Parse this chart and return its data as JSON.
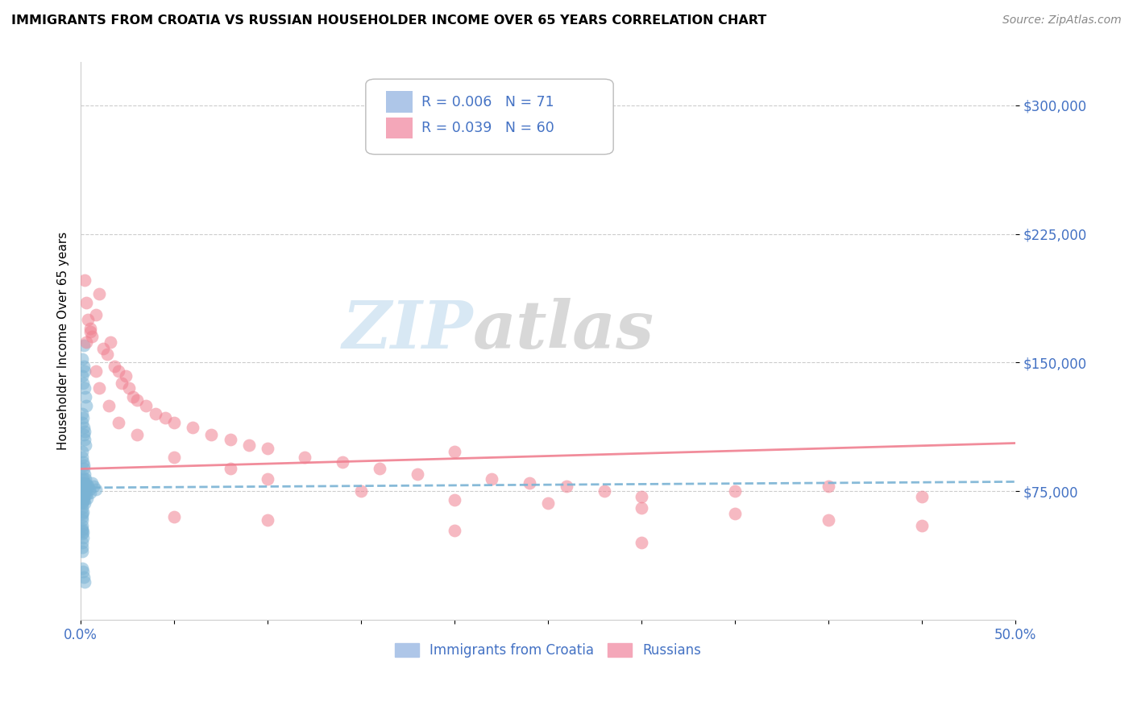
{
  "title": "IMMIGRANTS FROM CROATIA VS RUSSIAN HOUSEHOLDER INCOME OVER 65 YEARS CORRELATION CHART",
  "source": "Source: ZipAtlas.com",
  "ylabel": "Householder Income Over 65 years",
  "xlim": [
    0.0,
    0.5
  ],
  "ylim": [
    0,
    325000
  ],
  "yticks": [
    75000,
    150000,
    225000,
    300000
  ],
  "ytick_labels": [
    "$75,000",
    "$150,000",
    "$225,000",
    "$300,000"
  ],
  "xticks": [
    0.0,
    0.05,
    0.1,
    0.15,
    0.2,
    0.25,
    0.3,
    0.35,
    0.4,
    0.45,
    0.5
  ],
  "xtick_labels": [
    "0.0%",
    "",
    "",
    "",
    "",
    "",
    "",
    "",
    "",
    "",
    "50.0%"
  ],
  "R_croatia": "0.006",
  "N_croatia": "71",
  "R_russian": "0.039",
  "N_russian": "60",
  "croatia_color": "#7ab3d4",
  "russian_color": "#f08090",
  "croatia_legend_color": "#aec6e8",
  "russian_legend_color": "#f4a7b9",
  "croatia_x": [
    0.0008,
    0.001,
    0.0012,
    0.0015,
    0.0018,
    0.002,
    0.0022,
    0.0025,
    0.0028,
    0.0008,
    0.001,
    0.0012,
    0.0015,
    0.0018,
    0.002,
    0.0022,
    0.0025,
    0.0008,
    0.001,
    0.0012,
    0.0015,
    0.0018,
    0.002,
    0.0008,
    0.001,
    0.0012,
    0.0015,
    0.0018,
    0.002,
    0.0008,
    0.001,
    0.0012,
    0.0015,
    0.0018,
    0.0008,
    0.001,
    0.0012,
    0.002,
    0.0025,
    0.003,
    0.0035,
    0.0008,
    0.0008,
    0.001,
    0.001,
    0.0012,
    0.0008,
    0.0008,
    0.001,
    0.001,
    0.0012,
    0.0012,
    0.0008,
    0.0008,
    0.001,
    0.0015,
    0.0018,
    0.0022,
    0.0025,
    0.003,
    0.0035,
    0.004,
    0.0045,
    0.005,
    0.006,
    0.007,
    0.008,
    0.001,
    0.0012,
    0.0015,
    0.002
  ],
  "croatia_y": [
    142000,
    152000,
    138000,
    148000,
    160000,
    135000,
    145000,
    130000,
    125000,
    115000,
    120000,
    118000,
    112000,
    108000,
    110000,
    105000,
    102000,
    95000,
    98000,
    92000,
    90000,
    88000,
    85000,
    82000,
    80000,
    83000,
    78000,
    76000,
    79000,
    75000,
    77000,
    74000,
    72000,
    73000,
    71000,
    68000,
    69000,
    80000,
    82000,
    78000,
    79000,
    65000,
    62000,
    60000,
    58000,
    63000,
    55000,
    52000,
    50000,
    53000,
    48000,
    51000,
    45000,
    42000,
    40000,
    70000,
    72000,
    68000,
    75000,
    73000,
    71000,
    78000,
    76000,
    74000,
    80000,
    78000,
    76000,
    30000,
    28000,
    25000,
    22000
  ],
  "russian_x": [
    0.002,
    0.003,
    0.004,
    0.005,
    0.006,
    0.008,
    0.01,
    0.012,
    0.014,
    0.016,
    0.018,
    0.02,
    0.022,
    0.024,
    0.026,
    0.028,
    0.03,
    0.035,
    0.04,
    0.045,
    0.05,
    0.06,
    0.07,
    0.08,
    0.09,
    0.1,
    0.12,
    0.14,
    0.16,
    0.18,
    0.2,
    0.22,
    0.24,
    0.26,
    0.28,
    0.3,
    0.35,
    0.4,
    0.45,
    0.003,
    0.005,
    0.008,
    0.01,
    0.015,
    0.02,
    0.03,
    0.05,
    0.08,
    0.1,
    0.15,
    0.2,
    0.25,
    0.3,
    0.35,
    0.4,
    0.45,
    0.05,
    0.1,
    0.2,
    0.3
  ],
  "russian_y": [
    198000,
    185000,
    175000,
    170000,
    165000,
    178000,
    190000,
    158000,
    155000,
    162000,
    148000,
    145000,
    138000,
    142000,
    135000,
    130000,
    128000,
    125000,
    120000,
    118000,
    115000,
    112000,
    108000,
    105000,
    102000,
    100000,
    95000,
    92000,
    88000,
    85000,
    98000,
    82000,
    80000,
    78000,
    75000,
    72000,
    75000,
    78000,
    72000,
    162000,
    168000,
    145000,
    135000,
    125000,
    115000,
    108000,
    95000,
    88000,
    82000,
    75000,
    70000,
    68000,
    65000,
    62000,
    58000,
    55000,
    60000,
    58000,
    52000,
    45000
  ]
}
